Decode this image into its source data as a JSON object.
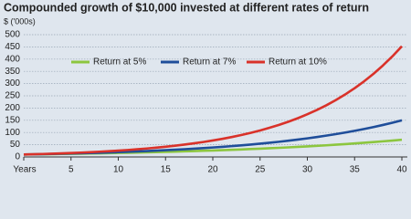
{
  "chart_data": {
    "type": "line",
    "title": "Compounded growth of $10,000 invested at different rates of return",
    "y_label": "$ ('000s)",
    "x": [
      0,
      1,
      2,
      3,
      4,
      5,
      6,
      7,
      8,
      9,
      10,
      11,
      12,
      13,
      14,
      15,
      16,
      17,
      18,
      19,
      20,
      21,
      22,
      23,
      24,
      25,
      26,
      27,
      28,
      29,
      30,
      31,
      32,
      33,
      34,
      35,
      36,
      37,
      38,
      39,
      40
    ],
    "series": [
      {
        "name": "Return at 5%",
        "color": "#8cc63f",
        "values": [
          10.0,
          10.5,
          11.0,
          11.6,
          12.2,
          12.8,
          13.4,
          14.1,
          14.8,
          15.5,
          16.3,
          17.1,
          18.0,
          18.9,
          19.8,
          20.8,
          21.8,
          22.9,
          24.1,
          25.3,
          26.5,
          27.9,
          29.3,
          30.7,
          32.3,
          33.9,
          35.6,
          37.3,
          39.2,
          41.2,
          43.2,
          45.4,
          47.6,
          50.0,
          52.5,
          55.2,
          57.9,
          60.8,
          63.9,
          67.0,
          70.4
        ]
      },
      {
        "name": "Return at 7%",
        "color": "#1f4e9a",
        "values": [
          10.0,
          10.7,
          11.4,
          12.3,
          13.1,
          14.0,
          15.0,
          16.1,
          17.2,
          18.4,
          19.7,
          21.0,
          22.5,
          24.1,
          25.8,
          27.6,
          29.5,
          31.6,
          33.8,
          36.2,
          38.7,
          41.4,
          44.3,
          47.4,
          50.7,
          54.3,
          58.1,
          62.1,
          66.5,
          71.1,
          76.1,
          81.5,
          87.2,
          93.3,
          99.8,
          106.8,
          114.2,
          122.2,
          130.8,
          140.0,
          149.7
        ]
      },
      {
        "name": "Return at 10%",
        "color": "#d9322a",
        "values": [
          10.0,
          11.0,
          12.1,
          13.3,
          14.6,
          16.1,
          17.7,
          19.5,
          21.4,
          23.6,
          25.9,
          28.5,
          31.4,
          34.5,
          38.0,
          41.8,
          45.9,
          50.5,
          55.6,
          61.2,
          67.3,
          74.0,
          81.4,
          89.5,
          98.5,
          108.3,
          119.2,
          131.1,
          144.2,
          158.6,
          174.5,
          191.9,
          211.1,
          232.3,
          255.5,
          281.0,
          309.1,
          340.1,
          374.1,
          411.5,
          452.6
        ]
      }
    ],
    "xlim": [
      0,
      40
    ],
    "xticks": [
      {
        "value": 0,
        "label": "Years"
      },
      5,
      10,
      15,
      20,
      25,
      30,
      35,
      40
    ],
    "ylim": [
      0,
      500
    ],
    "yticks": [
      0,
      50,
      100,
      150,
      200,
      250,
      300,
      350,
      400,
      450,
      500
    ],
    "grid": true
  }
}
